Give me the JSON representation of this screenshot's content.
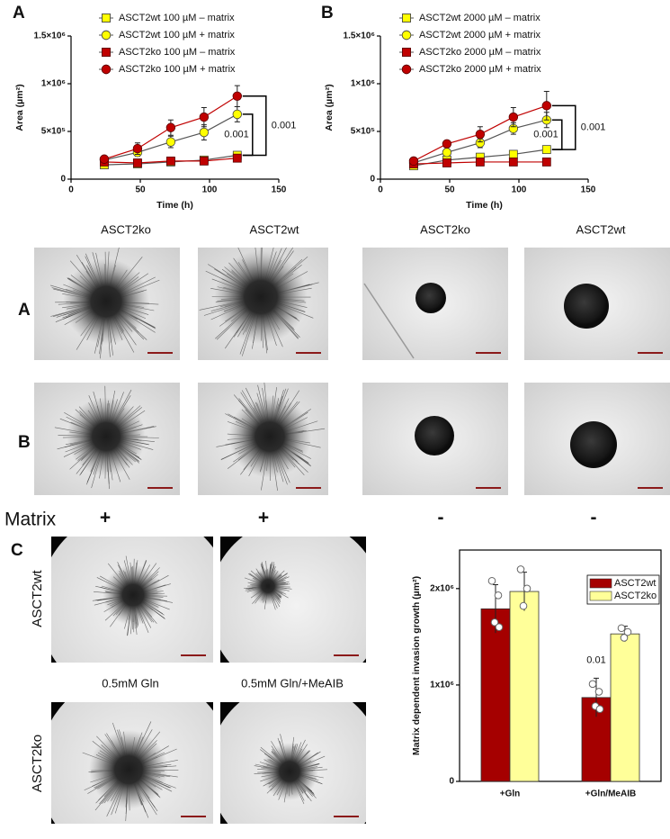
{
  "chart_data": [
    {
      "type": "line",
      "label": "A",
      "x_label": "Time (h)",
      "y_label": "Area (µm²)",
      "x": [
        24,
        48,
        72,
        96,
        120
      ],
      "xlim": [
        0,
        150
      ],
      "xticks": [
        0,
        50,
        100,
        150
      ],
      "ylim": [
        0,
        1500000
      ],
      "yticks": [
        0,
        {
          "value": 500000,
          "label": "5×10⁵"
        },
        {
          "value": 1000000,
          "label": "1×10⁶"
        },
        {
          "value": 1500000,
          "label": "1.5×10⁶"
        }
      ],
      "series": [
        {
          "name": "ASCT2wt 100 µM – matrix",
          "color": "#ffff00",
          "marker": "square",
          "values": [
            150000,
            160000,
            180000,
            200000,
            250000
          ],
          "errors": [
            15000,
            15000,
            20000,
            20000,
            30000
          ]
        },
        {
          "name": "ASCT2wt 100 µM + matrix",
          "color": "#ffff00",
          "marker": "circle",
          "values": [
            200000,
            280000,
            390000,
            490000,
            680000
          ],
          "errors": [
            20000,
            40000,
            60000,
            80000,
            80000
          ]
        },
        {
          "name": "ASCT2ko 100 µM – matrix",
          "color": "#c00000",
          "marker": "square",
          "values": [
            180000,
            170000,
            190000,
            190000,
            220000
          ],
          "errors": [
            15000,
            15000,
            15000,
            20000,
            20000
          ]
        },
        {
          "name": "ASCT2ko 100 µM + matrix",
          "color": "#c00000",
          "marker": "circle",
          "values": [
            210000,
            320000,
            540000,
            650000,
            870000
          ],
          "errors": [
            20000,
            60000,
            80000,
            100000,
            110000
          ]
        }
      ],
      "annotations": [
        "0.001",
        "0.001"
      ]
    },
    {
      "type": "line",
      "label": "B",
      "x_label": "Time (h)",
      "y_label": "Area (µm²)",
      "x": [
        24,
        48,
        72,
        96,
        120
      ],
      "xlim": [
        0,
        150
      ],
      "xticks": [
        0,
        50,
        100,
        150
      ],
      "ylim": [
        0,
        1500000
      ],
      "yticks": [
        0,
        {
          "value": 500000,
          "label": "5×10⁵"
        },
        {
          "value": 1000000,
          "label": "1×10⁶"
        },
        {
          "value": 1500000,
          "label": "1.5×10⁶"
        }
      ],
      "series": [
        {
          "name": "ASCT2wt 2000 µM – matrix",
          "color": "#ffff00",
          "marker": "square",
          "values": [
            140000,
            200000,
            230000,
            260000,
            310000
          ],
          "errors": [
            10000,
            15000,
            15000,
            20000,
            20000
          ]
        },
        {
          "name": "ASCT2wt 2000 µM + matrix",
          "color": "#ffff00",
          "marker": "circle",
          "values": [
            170000,
            280000,
            380000,
            530000,
            620000
          ],
          "errors": [
            15000,
            20000,
            50000,
            60000,
            80000
          ]
        },
        {
          "name": "ASCT2ko 2000 µM – matrix",
          "color": "#c00000",
          "marker": "square",
          "values": [
            160000,
            170000,
            180000,
            180000,
            180000
          ],
          "errors": [
            10000,
            10000,
            10000,
            10000,
            10000
          ]
        },
        {
          "name": "ASCT2ko 2000 µM + matrix",
          "color": "#c00000",
          "marker": "circle",
          "values": [
            190000,
            370000,
            470000,
            650000,
            770000
          ],
          "errors": [
            15000,
            30000,
            80000,
            100000,
            150000
          ]
        }
      ],
      "annotations": [
        "0.001",
        "0.001"
      ]
    },
    {
      "type": "bar",
      "y_label": "Matrix dependent invasion growth (µm²)",
      "categories": [
        "+Gln",
        "+Gln/MeAIB"
      ],
      "ylim": [
        0,
        2400000
      ],
      "yticks": [
        0,
        {
          "value": 1000000,
          "label": "1x10⁶"
        },
        {
          "value": 2000000,
          "label": "2x10⁶"
        }
      ],
      "legend": "upper right",
      "series": [
        {
          "name": "ASCT2wt",
          "color": "#a50000",
          "values": [
            1790000,
            870000
          ],
          "errors": [
            250000,
            200000
          ],
          "points": [
            [
              2080000,
              1930000,
              1650000,
              1600000
            ],
            [
              1010000,
              930000,
              780000,
              750000
            ]
          ]
        },
        {
          "name": "ASCT2ko",
          "color": "#ffff99",
          "values": [
            1970000,
            1530000
          ],
          "errors": [
            200000,
            80000
          ],
          "points": [
            [
              2200000,
              2000000,
              1820000
            ],
            [
              1590000,
              1550000,
              1490000
            ]
          ]
        }
      ],
      "annotations": [
        "0.01"
      ]
    }
  ],
  "figure": {
    "column_headers": [
      "ASCT2ko",
      "ASCT2wt",
      "ASCT2ko",
      "ASCT2wt"
    ],
    "row_labels": [
      "A",
      "B"
    ],
    "matrix_label": "Matrix",
    "matrix_signs": [
      "+",
      "+",
      "-",
      "-"
    ],
    "panel_c": {
      "label": "C",
      "row_labels": [
        "ASCT2wt",
        "ASCT2ko"
      ],
      "column_labels": [
        "0.5mM Gln",
        "0.5mM Gln/+MeAIB"
      ]
    }
  }
}
